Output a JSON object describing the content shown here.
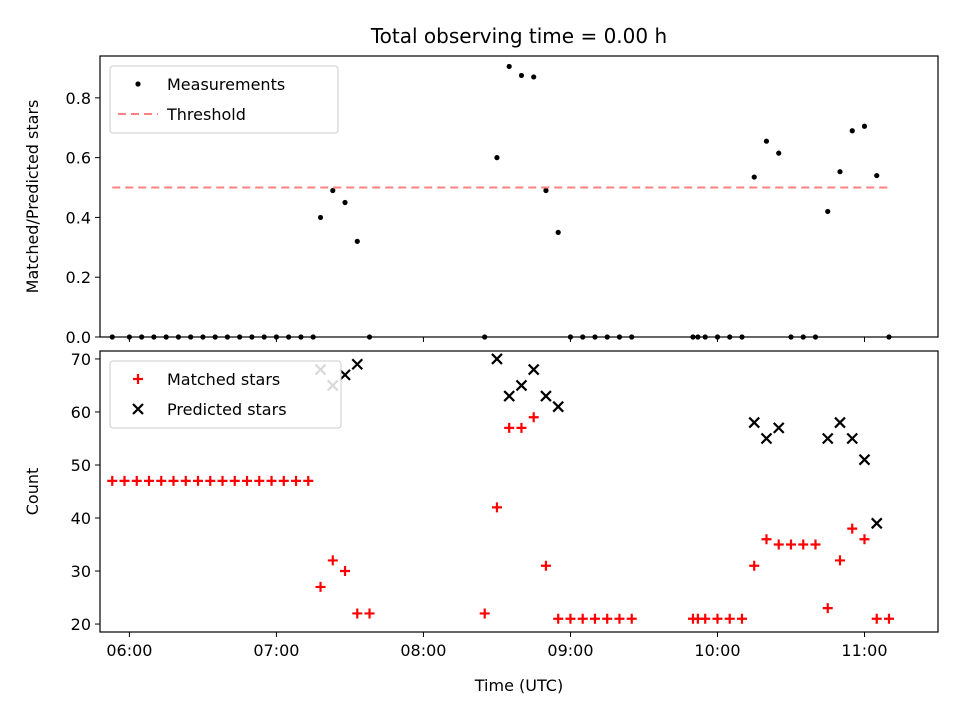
{
  "chart_data": [
    {
      "type": "scatter",
      "title": "Total observing time = 0.00 h",
      "ylabel": "Matched/Predicted stars",
      "xlabel": "",
      "xlim": [
        "05:48",
        "11:30"
      ],
      "ylim": [
        0,
        0.94
      ],
      "y_ticks": [
        "0.0",
        "0.2",
        "0.4",
        "0.6",
        "0.8"
      ],
      "legend": {
        "position": "top-left",
        "entries": [
          {
            "label": "Measurements",
            "marker": "dot",
            "color": "#000000"
          },
          {
            "label": "Threshold",
            "marker": "dashed-line",
            "color": "#ff8080"
          }
        ]
      },
      "series": [
        {
          "name": "Measurements",
          "color": "#000000",
          "points": [
            [
              "05:53",
              0
            ],
            [
              "06:00",
              0
            ],
            [
              "06:05",
              0
            ],
            [
              "06:10",
              0
            ],
            [
              "06:15",
              0
            ],
            [
              "06:20",
              0
            ],
            [
              "06:25",
              0
            ],
            [
              "06:30",
              0
            ],
            [
              "06:35",
              0
            ],
            [
              "06:40",
              0
            ],
            [
              "06:45",
              0
            ],
            [
              "06:50",
              0
            ],
            [
              "06:55",
              0
            ],
            [
              "07:00",
              0
            ],
            [
              "07:05",
              0
            ],
            [
              "07:10",
              0
            ],
            [
              "07:15",
              0
            ],
            [
              "07:18",
              0.4
            ],
            [
              "07:23",
              0.49
            ],
            [
              "07:28",
              0.45
            ],
            [
              "07:33",
              0.32
            ],
            [
              "07:38",
              0
            ],
            [
              "08:25",
              0
            ],
            [
              "08:30",
              0.6
            ],
            [
              "08:35",
              0.905
            ],
            [
              "08:40",
              0.875
            ],
            [
              "08:45",
              0.87
            ],
            [
              "08:50",
              0.49
            ],
            [
              "08:55",
              0.35
            ],
            [
              "09:00",
              0
            ],
            [
              "09:05",
              0
            ],
            [
              "09:10",
              0
            ],
            [
              "09:15",
              0
            ],
            [
              "09:20",
              0
            ],
            [
              "09:25",
              0
            ],
            [
              "09:50",
              0
            ],
            [
              "09:52",
              0
            ],
            [
              "09:55",
              0
            ],
            [
              "10:00",
              0
            ],
            [
              "10:05",
              0
            ],
            [
              "10:10",
              0
            ],
            [
              "10:15",
              0.535
            ],
            [
              "10:20",
              0.655
            ],
            [
              "10:25",
              0.615
            ],
            [
              "10:30",
              0
            ],
            [
              "10:35",
              0
            ],
            [
              "10:40",
              0
            ],
            [
              "10:45",
              0.42
            ],
            [
              "10:50",
              0.553
            ],
            [
              "10:55",
              0.69
            ],
            [
              "11:00",
              0.705
            ],
            [
              "11:05",
              0.54
            ],
            [
              "11:10",
              0
            ]
          ]
        },
        {
          "name": "Threshold",
          "color": "#ff8080",
          "line": [
            [
              "05:53",
              0.5
            ],
            [
              "11:10",
              0.5
            ]
          ]
        }
      ]
    },
    {
      "type": "scatter",
      "title": "",
      "ylabel": "Count",
      "xlabel": "Time (UTC)",
      "xlim": [
        "05:48",
        "11:30"
      ],
      "ylim": [
        18.5,
        71.5
      ],
      "x_ticks": [
        "06:00",
        "07:00",
        "08:00",
        "09:00",
        "10:00",
        "11:00"
      ],
      "y_ticks": [
        "20",
        "30",
        "40",
        "50",
        "60",
        "70"
      ],
      "legend": {
        "position": "top-left",
        "entries": [
          {
            "label": "Matched stars",
            "marker": "plus",
            "color": "#ff0000"
          },
          {
            "label": "Predicted stars",
            "marker": "x",
            "color": "#000000"
          }
        ]
      },
      "series": [
        {
          "name": "Matched stars",
          "color": "#ff0000",
          "points": [
            [
              "05:53",
              47
            ],
            [
              "05:58",
              47
            ],
            [
              "06:03",
              47
            ],
            [
              "06:08",
              47
            ],
            [
              "06:13",
              47
            ],
            [
              "06:18",
              47
            ],
            [
              "06:23",
              47
            ],
            [
              "06:28",
              47
            ],
            [
              "06:33",
              47
            ],
            [
              "06:38",
              47
            ],
            [
              "06:43",
              47
            ],
            [
              "06:48",
              47
            ],
            [
              "06:53",
              47
            ],
            [
              "06:58",
              47
            ],
            [
              "07:03",
              47
            ],
            [
              "07:08",
              47
            ],
            [
              "07:13",
              47
            ],
            [
              "07:18",
              27
            ],
            [
              "07:23",
              32
            ],
            [
              "07:28",
              30
            ],
            [
              "07:33",
              22
            ],
            [
              "07:38",
              22
            ],
            [
              "08:25",
              22
            ],
            [
              "08:30",
              42
            ],
            [
              "08:35",
              57
            ],
            [
              "08:40",
              57
            ],
            [
              "08:45",
              59
            ],
            [
              "08:50",
              31
            ],
            [
              "08:55",
              21
            ],
            [
              "09:00",
              21
            ],
            [
              "09:05",
              21
            ],
            [
              "09:10",
              21
            ],
            [
              "09:15",
              21
            ],
            [
              "09:20",
              21
            ],
            [
              "09:25",
              21
            ],
            [
              "09:50",
              21
            ],
            [
              "09:52",
              21
            ],
            [
              "09:55",
              21
            ],
            [
              "10:00",
              21
            ],
            [
              "10:05",
              21
            ],
            [
              "10:10",
              21
            ],
            [
              "10:15",
              31
            ],
            [
              "10:20",
              36
            ],
            [
              "10:25",
              35
            ],
            [
              "10:30",
              35
            ],
            [
              "10:35",
              35
            ],
            [
              "10:40",
              35
            ],
            [
              "10:45",
              23
            ],
            [
              "10:50",
              32
            ],
            [
              "10:55",
              38
            ],
            [
              "11:00",
              36
            ],
            [
              "11:05",
              21
            ],
            [
              "11:10",
              21
            ]
          ]
        },
        {
          "name": "Predicted stars",
          "color": "#000000",
          "points": [
            [
              "07:18",
              68
            ],
            [
              "07:23",
              65
            ],
            [
              "07:28",
              67
            ],
            [
              "07:33",
              69
            ],
            [
              "08:30",
              70
            ],
            [
              "08:35",
              63
            ],
            [
              "08:40",
              65
            ],
            [
              "08:45",
              68
            ],
            [
              "08:50",
              63
            ],
            [
              "08:55",
              61
            ],
            [
              "10:15",
              58
            ],
            [
              "10:20",
              55
            ],
            [
              "10:25",
              57
            ],
            [
              "10:45",
              55
            ],
            [
              "10:50",
              58
            ],
            [
              "10:55",
              55
            ],
            [
              "11:00",
              51
            ],
            [
              "11:05",
              39
            ]
          ]
        }
      ]
    }
  ]
}
